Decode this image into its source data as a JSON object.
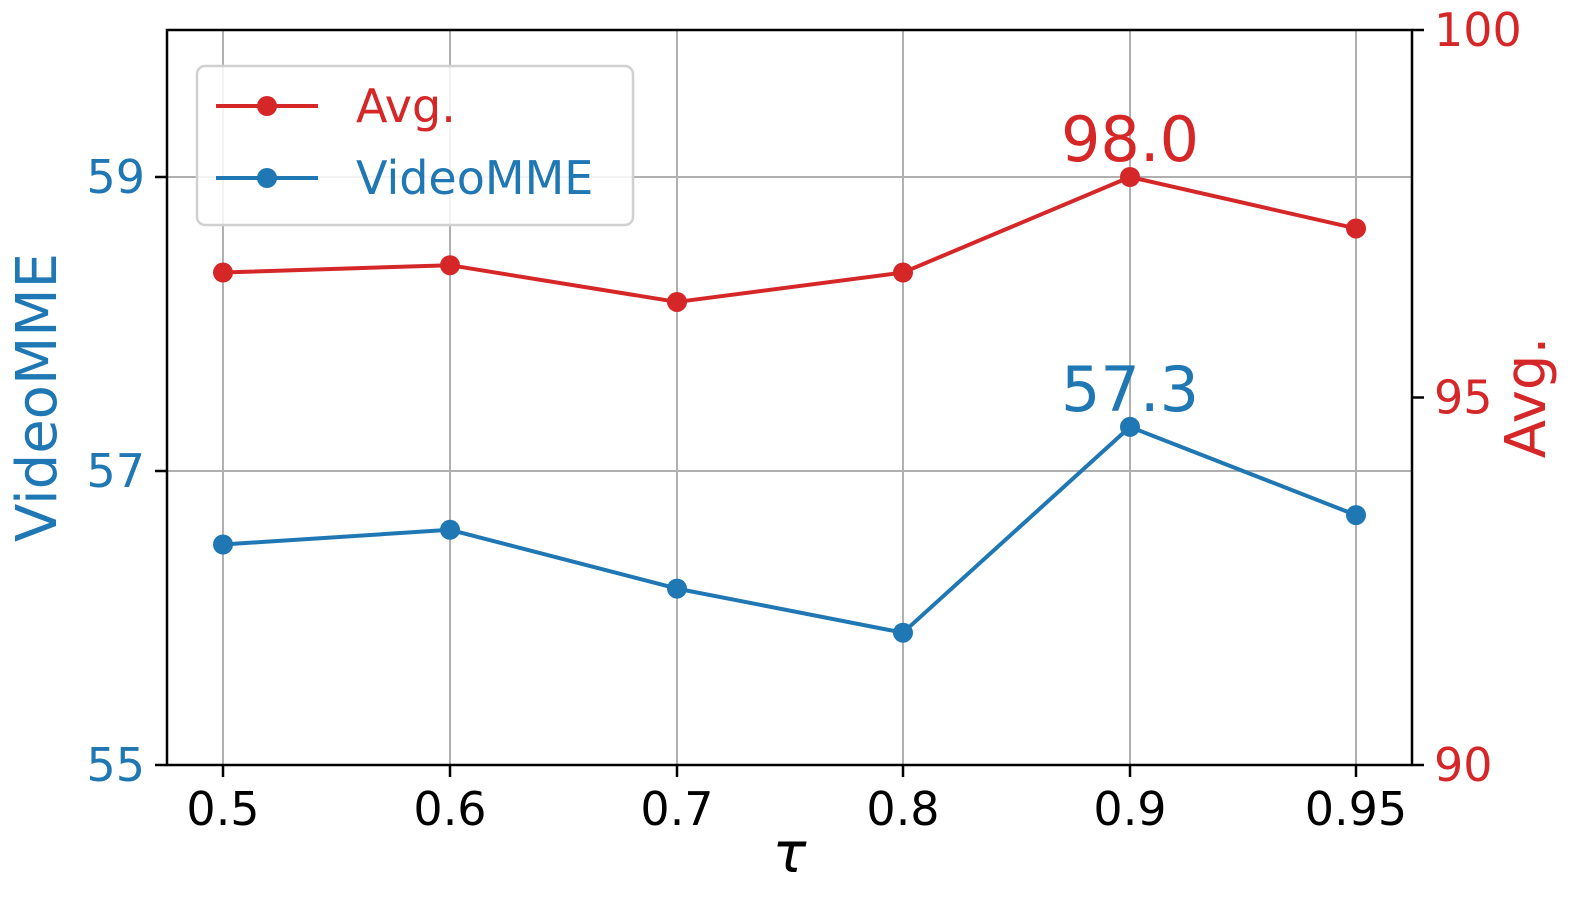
{
  "chart_data": {
    "type": "line",
    "xlabel": "τ",
    "x_ticks": [
      "0.5",
      "0.6",
      "0.7",
      "0.8",
      "0.9",
      "0.95"
    ],
    "y_left": {
      "label": "VideoMME",
      "range": [
        55,
        60
      ],
      "ticks": [
        "55",
        "57",
        "59"
      ],
      "color": "#1f77b4"
    },
    "y_right": {
      "label": "Avg.",
      "range": [
        90,
        100
      ],
      "ticks": [
        "90",
        "95",
        "100"
      ],
      "color": "#d62728"
    },
    "grid": true,
    "legend": {
      "placement": "upper-left",
      "items": [
        "Avg.",
        "VideoMME"
      ]
    },
    "series": [
      {
        "name": "Avg.",
        "axis": "right",
        "color": "#d62728",
        "values": [
          96.7,
          96.8,
          96.3,
          96.7,
          98.0,
          97.3
        ]
      },
      {
        "name": "VideoMME",
        "axis": "left",
        "color": "#1f77b4",
        "values": [
          56.5,
          56.6,
          56.2,
          55.9,
          57.3,
          56.7
        ]
      }
    ],
    "annotations": [
      {
        "series": "Avg.",
        "index": 4,
        "text": "98.0",
        "color": "#d62728"
      },
      {
        "series": "VideoMME",
        "index": 4,
        "text": "57.3",
        "color": "#1f77b4"
      }
    ]
  }
}
